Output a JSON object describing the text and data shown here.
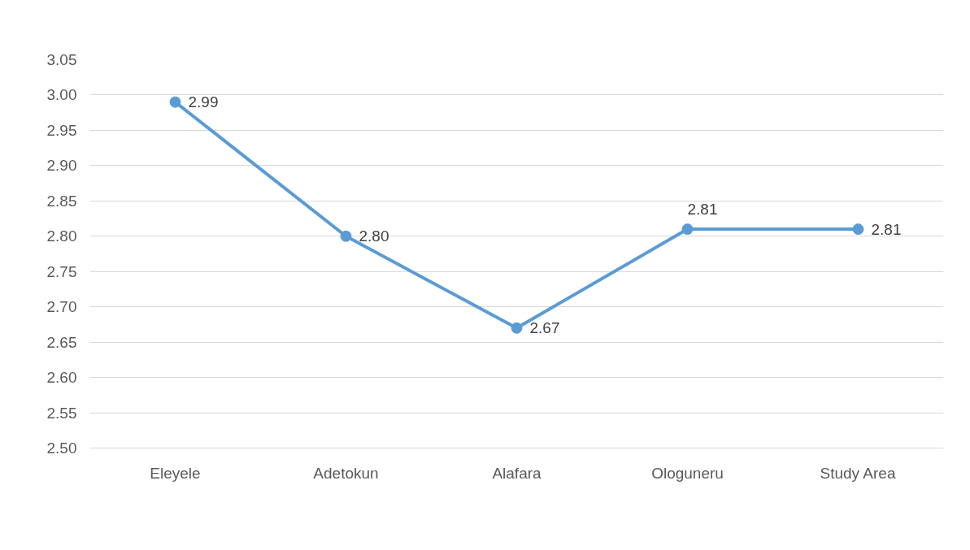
{
  "chart_data": {
    "type": "line",
    "categories": [
      "Eleyele",
      "Adetokun",
      "Alafara",
      "Ologuneru",
      "Study Area"
    ],
    "series": [
      {
        "color": "#5b9bd5",
        "values": [
          2.99,
          2.8,
          2.67,
          2.81,
          2.81
        ],
        "value_labels": [
          "2.99",
          "2.80",
          "2.67",
          "2.81",
          "2.81"
        ]
      }
    ],
    "ylim": [
      2.5,
      3.05
    ],
    "yticks": [
      {
        "value": 2.5,
        "label": "2.50"
      },
      {
        "value": 2.55,
        "label": "2.55"
      },
      {
        "value": 2.6,
        "label": "2.60"
      },
      {
        "value": 2.65,
        "label": "2.65"
      },
      {
        "value": 2.7,
        "label": "2.70"
      },
      {
        "value": 2.75,
        "label": "2.75"
      },
      {
        "value": 2.8,
        "label": "2.80"
      },
      {
        "value": 2.85,
        "label": "2.85"
      },
      {
        "value": 2.9,
        "label": "2.90"
      },
      {
        "value": 2.95,
        "label": "2.95"
      },
      {
        "value": 3.0,
        "label": "3.00"
      },
      {
        "value": 3.05,
        "label": "3.05"
      }
    ],
    "grid": "y",
    "marker": "circle",
    "line_style": "solid"
  }
}
